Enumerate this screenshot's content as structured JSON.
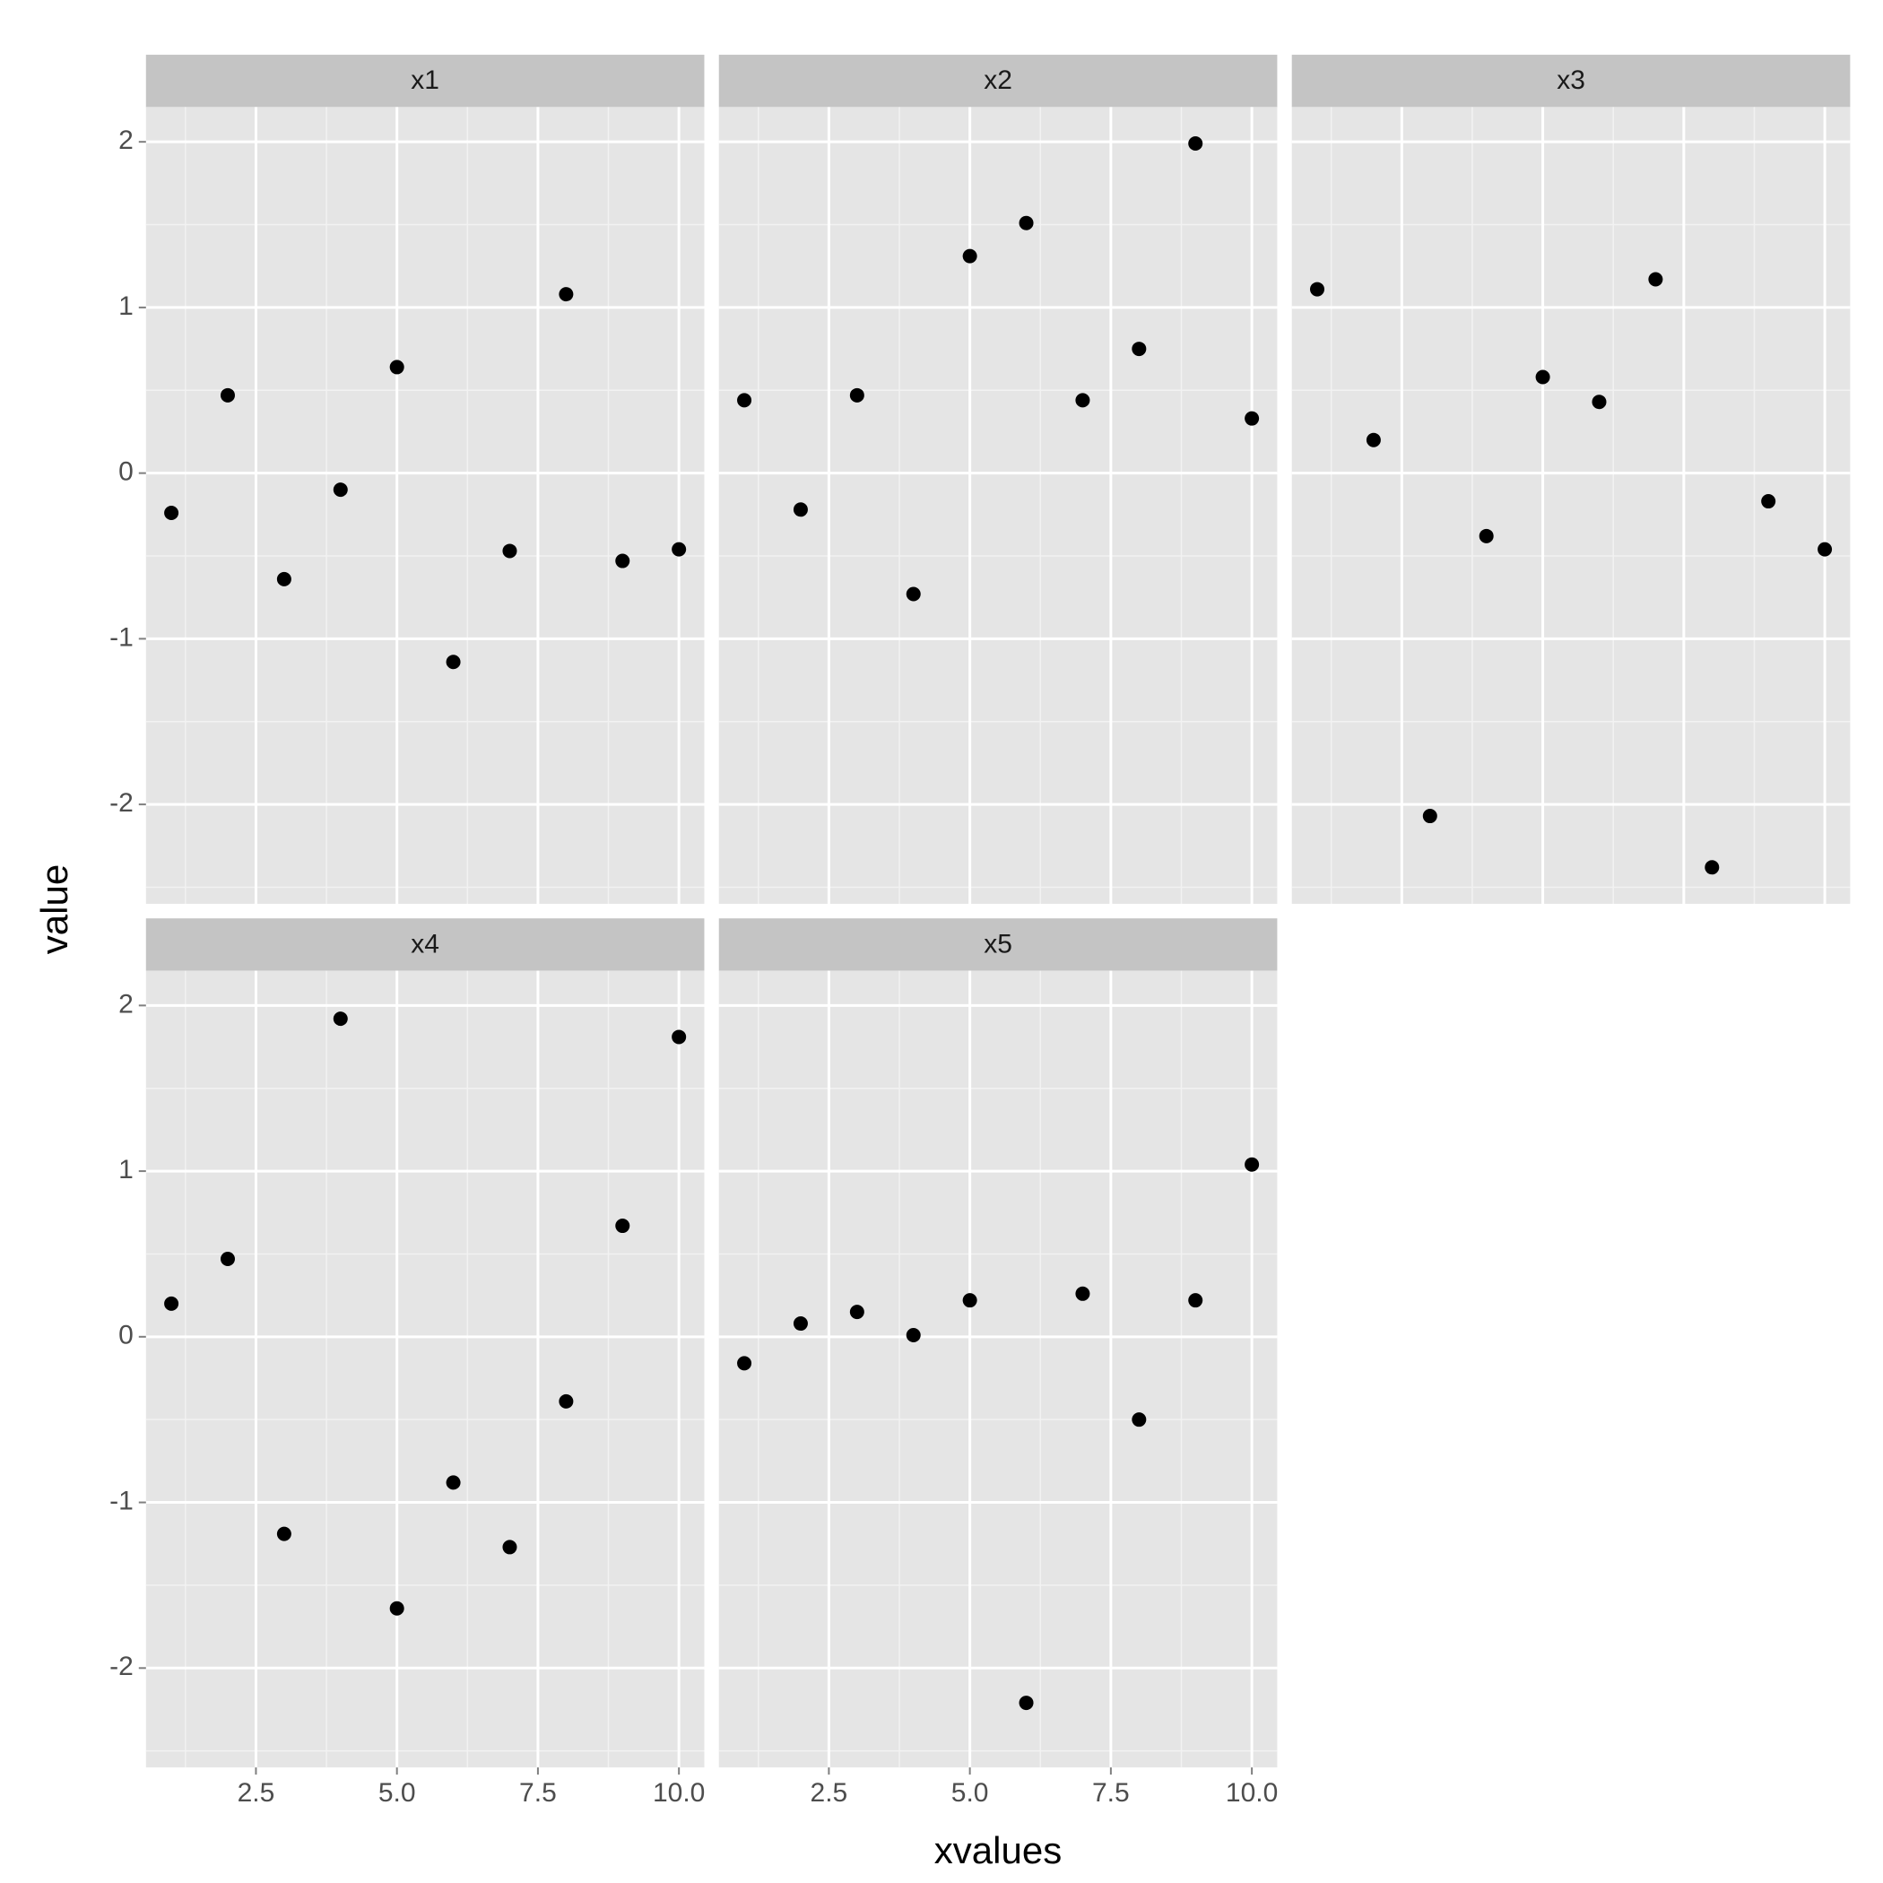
{
  "chart_data": {
    "type": "scatter",
    "facets": true,
    "xlabel": "xvalues",
    "ylabel": "value",
    "color": "#000000",
    "grid": true,
    "x": [
      1,
      2,
      3,
      4,
      5,
      6,
      7,
      8,
      9,
      10
    ],
    "series": [
      {
        "name": "x1",
        "values": [
          -0.24,
          0.47,
          -0.64,
          -0.1,
          0.64,
          -1.14,
          -0.47,
          1.08,
          -0.53,
          -0.46
        ]
      },
      {
        "name": "x2",
        "values": [
          0.44,
          -0.22,
          0.47,
          -0.73,
          1.31,
          1.51,
          0.44,
          0.75,
          1.99,
          0.33
        ]
      },
      {
        "name": "x3",
        "values": [
          1.11,
          0.2,
          -2.07,
          -0.38,
          0.58,
          0.43,
          1.17,
          -2.38,
          -0.17,
          -0.46
        ]
      },
      {
        "name": "x4",
        "values": [
          0.2,
          0.47,
          -1.19,
          1.92,
          -1.64,
          -0.88,
          -1.27,
          -0.39,
          0.67,
          1.81
        ]
      },
      {
        "name": "x5",
        "values": [
          -0.16,
          0.08,
          0.15,
          0.01,
          0.22,
          -2.21,
          0.26,
          -0.5,
          0.22,
          1.04
        ]
      }
    ],
    "xlim": [
      0.55,
      10.45
    ],
    "xticks": [
      2.5,
      {
        "value": 5,
        "label": "5.0"
      },
      7.5,
      {
        "value": 10,
        "label": "10.0"
      }
    ],
    "ylim": [
      -2.6,
      2.21
    ],
    "yticks": [
      -2,
      -1,
      0,
      1,
      2
    ]
  }
}
